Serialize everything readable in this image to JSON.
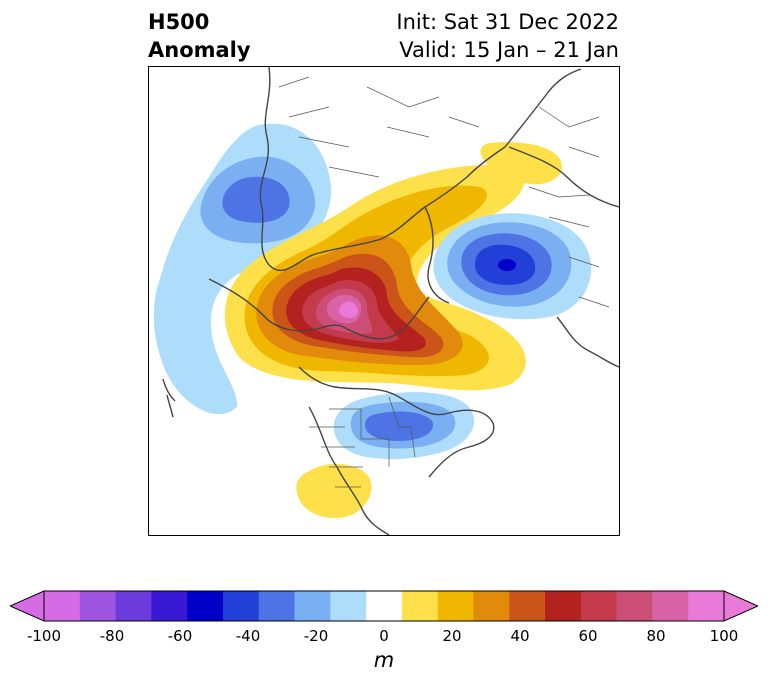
{
  "title": {
    "left_line1": "H500",
    "left_line2": "Anomaly",
    "init": "Init: Sat 31 Dec 2022",
    "valid": "Valid: 15 Jan – 21 Jan"
  },
  "colorbar": {
    "unit": "m",
    "ticks": [
      "-100",
      "-80",
      "-60",
      "-40",
      "-20",
      "0",
      "20",
      "40",
      "60",
      "80",
      "100"
    ],
    "levels": [
      -100,
      -90,
      -80,
      -70,
      -60,
      -50,
      -40,
      -30,
      -20,
      -10,
      10,
      20,
      30,
      40,
      50,
      60,
      70,
      80,
      90,
      100
    ],
    "colors": [
      "#d66ce5",
      "#9f55e2",
      "#6b3bdc",
      "#3719d3",
      "#0000c8",
      "#2240d8",
      "#4e73e4",
      "#7ab0f2",
      "#aedcfb",
      "#ffffff",
      "#fde04a",
      "#f0b700",
      "#e18a0c",
      "#cb5418",
      "#b4221f",
      "#c23a4c",
      "#cc4e76",
      "#d963a6",
      "#e97ad9"
    ],
    "extend_low_color": "#d66ce5",
    "extend_high_color": "#e97ad9"
  }
}
